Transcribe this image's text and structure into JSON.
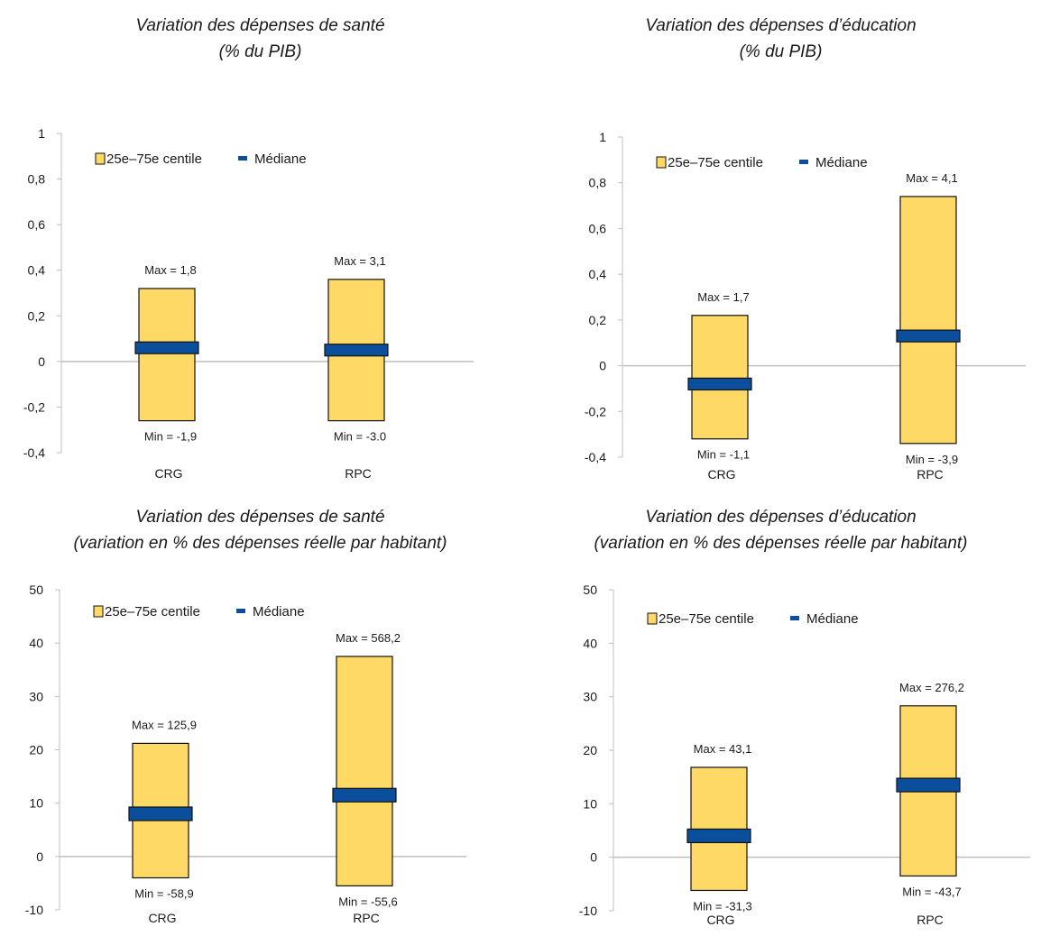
{
  "legend": {
    "range_label": "25e–75e centile",
    "median_label": "Médiane"
  },
  "colors": {
    "box": "#FFD966",
    "box_stroke": "#111111",
    "median": "#0B4F9C",
    "median_stroke": "#111111",
    "zero_line": "#BFBFBF",
    "axis": "#BFBFBF"
  },
  "chart_data": [
    {
      "type": "box_range",
      "title": "Variation des dépenses de santé",
      "subtitle": "(% du PIB)",
      "categories": [
        "CRG",
        "RPC"
      ],
      "series": [
        {
          "name": "25e–75e centile",
          "low": [
            -0.26,
            -0.26
          ],
          "high": [
            0.32,
            0.36
          ]
        },
        {
          "name": "Médiane",
          "values": [
            0.06,
            0.05
          ]
        }
      ],
      "annotations": {
        "max": [
          "Max = 1,8",
          "Max = 3,1"
        ],
        "min": [
          "Min = -1,9",
          "Min = -3.0"
        ]
      },
      "ylim": [
        -0.4,
        1
      ],
      "yticks": [
        -0.4,
        -0.2,
        0,
        0.2,
        0.4,
        0.6,
        0.8,
        1
      ],
      "ytick_labels": [
        "-0,4",
        "-0,2",
        "0",
        "0,2",
        "0,4",
        "0,6",
        "0,8",
        "1"
      ],
      "legend_position": "top-left"
    },
    {
      "type": "box_range",
      "title": "Variation des dépenses d’éducation",
      "subtitle": "(% du PIB)",
      "categories": [
        "CRG",
        "RPC"
      ],
      "series": [
        {
          "name": "25e–75e centile",
          "low": [
            -0.32,
            -0.34
          ],
          "high": [
            0.22,
            0.74
          ]
        },
        {
          "name": "Médiane",
          "values": [
            -0.08,
            0.13
          ]
        }
      ],
      "annotations": {
        "max": [
          "Max = 1,7",
          "Max = 4,1"
        ],
        "min": [
          "Min = -1,1",
          "Min = -3,9"
        ]
      },
      "ylim": [
        -0.4,
        1
      ],
      "yticks": [
        -0.4,
        -0.2,
        0,
        0.2,
        0.4,
        0.6,
        0.8,
        1
      ],
      "ytick_labels": [
        "-0,4",
        "-0,2",
        "0",
        "0,2",
        "0,4",
        "0,6",
        "0,8",
        "1"
      ],
      "legend_position": "top-left"
    },
    {
      "type": "box_range",
      "title": "Variation des dépenses de santé",
      "subtitle": "(variation en % des dépenses réelle par habitant)",
      "categories": [
        "CRG",
        "RPC"
      ],
      "series": [
        {
          "name": "25e–75e centile",
          "low": [
            -4,
            -5.5
          ],
          "high": [
            21.2,
            37.5
          ]
        },
        {
          "name": "Médiane",
          "values": [
            8,
            11.5
          ]
        }
      ],
      "annotations": {
        "max": [
          "Max = 125,9",
          "Max = 568,2"
        ],
        "min": [
          "Min = -58,9",
          "Min = -55,6"
        ]
      },
      "ylim": [
        -10,
        50
      ],
      "yticks": [
        -10,
        0,
        10,
        20,
        30,
        40,
        50
      ],
      "ytick_labels": [
        "-10",
        "0",
        "10",
        "20",
        "30",
        "40",
        "50"
      ],
      "legend_position": "top-left"
    },
    {
      "type": "box_range",
      "title": "Variation des dépenses d’éducation",
      "subtitle": "(variation en % des dépenses réelle par habitant)",
      "categories": [
        "CRG",
        "RPC"
      ],
      "series": [
        {
          "name": "25e–75e centile",
          "low": [
            -6.2,
            -3.5
          ],
          "high": [
            16.8,
            28.3
          ]
        },
        {
          "name": "Médiane",
          "values": [
            4,
            13.5
          ]
        }
      ],
      "annotations": {
        "max": [
          "Max = 43,1",
          "Max = 276,2"
        ],
        "min": [
          "Min = -31,3",
          "Min = -43,7"
        ]
      },
      "ylim": [
        -10,
        50
      ],
      "yticks": [
        -10,
        0,
        10,
        20,
        30,
        40,
        50
      ],
      "ytick_labels": [
        "-10",
        "0",
        "10",
        "20",
        "30",
        "40",
        "50"
      ],
      "legend_position": "top-left"
    }
  ]
}
